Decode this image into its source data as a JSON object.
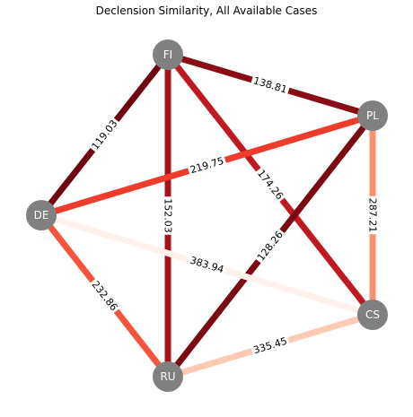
{
  "title": "Declension Similarity, All Available Cases",
  "nodes": [
    {
      "id": "FI",
      "label": "FI"
    },
    {
      "id": "PL",
      "label": "PL"
    },
    {
      "id": "DE",
      "label": "DE"
    },
    {
      "id": "CS",
      "label": "CS"
    },
    {
      "id": "RU",
      "label": "RU"
    }
  ],
  "node_color": "#808080",
  "edges": [
    {
      "source": "FI",
      "target": "PL",
      "value": "138.81",
      "color": "#8a0d15"
    },
    {
      "source": "FI",
      "target": "DE",
      "value": "119.03",
      "color": "#6e0410"
    },
    {
      "source": "FI",
      "target": "RU",
      "value": "152.03",
      "color": "#a8131b"
    },
    {
      "source": "FI",
      "target": "CS",
      "value": "174.26",
      "color": "#c01a21"
    },
    {
      "source": "PL",
      "target": "DE",
      "value": "219.75",
      "color": "#ef3b2c"
    },
    {
      "source": "PL",
      "target": "CS",
      "value": "287.21",
      "color": "#fb9070"
    },
    {
      "source": "PL",
      "target": "RU",
      "value": "128.26",
      "color": "#7a0913"
    },
    {
      "source": "DE",
      "target": "CS",
      "value": "383.94",
      "color": "#fff1ec"
    },
    {
      "source": "DE",
      "target": "RU",
      "value": "232.86",
      "color": "#f5553d"
    },
    {
      "source": "RU",
      "target": "CS",
      "value": "335.45",
      "color": "#fdcab3"
    }
  ]
}
